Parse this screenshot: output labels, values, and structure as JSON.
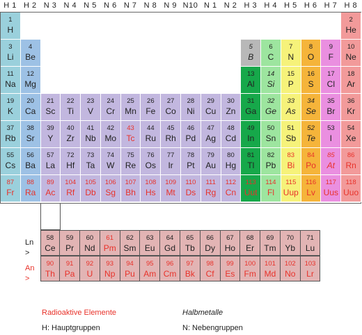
{
  "colors": {
    "alkali": "#9ad0dc",
    "alkaline_earth": "#9dc1e5",
    "transition": "#c2b7df",
    "boron": "#16a84a",
    "carbon": "#9de59f",
    "nitrogen": "#f6f27a",
    "oxygen": "#f5b43a",
    "halogen": "#ea8fe0",
    "noble": "#f29a9a",
    "boron_B": "#b8b8b8",
    "lanthanide": "#e2b4b4",
    "radioactive": "#e8322a"
  },
  "headers": [
    "H 1",
    "H 2",
    "N 3",
    "N 4",
    "N 5",
    "N 6",
    "N 7",
    "N 8",
    "N 9",
    "N10",
    "N 1",
    "N 2",
    "H 3",
    "H 4",
    "H 5",
    "H 6",
    "H 7",
    "H 8"
  ],
  "elements": [
    {
      "n": "1",
      "s": "H",
      "c": 1,
      "r": 1,
      "g": "alkali"
    },
    {
      "n": "2",
      "s": "He",
      "c": 18,
      "r": 1,
      "g": "noble"
    },
    {
      "n": "3",
      "s": "Li",
      "c": 1,
      "r": 2,
      "g": "alkali"
    },
    {
      "n": "4",
      "s": "Be",
      "c": 2,
      "r": 2,
      "g": "alkaline_earth"
    },
    {
      "n": "5",
      "s": "B",
      "c": 13,
      "r": 2,
      "g": "boron_B",
      "it": true
    },
    {
      "n": "6",
      "s": "C",
      "c": 14,
      "r": 2,
      "g": "carbon"
    },
    {
      "n": "7",
      "s": "N",
      "c": 15,
      "r": 2,
      "g": "nitrogen"
    },
    {
      "n": "8",
      "s": "O",
      "c": 16,
      "r": 2,
      "g": "oxygen"
    },
    {
      "n": "9",
      "s": "F",
      "c": 17,
      "r": 2,
      "g": "halogen"
    },
    {
      "n": "10",
      "s": "Ne",
      "c": 18,
      "r": 2,
      "g": "noble"
    },
    {
      "n": "11",
      "s": "Na",
      "c": 1,
      "r": 3,
      "g": "alkali"
    },
    {
      "n": "12",
      "s": "Mg",
      "c": 2,
      "r": 3,
      "g": "alkaline_earth"
    },
    {
      "n": "13",
      "s": "Al",
      "c": 13,
      "r": 3,
      "g": "boron"
    },
    {
      "n": "14",
      "s": "Si",
      "c": 14,
      "r": 3,
      "g": "carbon",
      "it": true
    },
    {
      "n": "15",
      "s": "P",
      "c": 15,
      "r": 3,
      "g": "nitrogen"
    },
    {
      "n": "16",
      "s": "S",
      "c": 16,
      "r": 3,
      "g": "oxygen"
    },
    {
      "n": "17",
      "s": "Cl",
      "c": 17,
      "r": 3,
      "g": "halogen"
    },
    {
      "n": "18",
      "s": "Ar",
      "c": 18,
      "r": 3,
      "g": "noble"
    },
    {
      "n": "19",
      "s": "K",
      "c": 1,
      "r": 4,
      "g": "alkali"
    },
    {
      "n": "20",
      "s": "Ca",
      "c": 2,
      "r": 4,
      "g": "alkaline_earth"
    },
    {
      "n": "21",
      "s": "Sc",
      "c": 3,
      "r": 4,
      "g": "transition"
    },
    {
      "n": "22",
      "s": "Ti",
      "c": 4,
      "r": 4,
      "g": "transition"
    },
    {
      "n": "23",
      "s": "V",
      "c": 5,
      "r": 4,
      "g": "transition"
    },
    {
      "n": "24",
      "s": "Cr",
      "c": 6,
      "r": 4,
      "g": "transition"
    },
    {
      "n": "25",
      "s": "Mn",
      "c": 7,
      "r": 4,
      "g": "transition"
    },
    {
      "n": "26",
      "s": "Fe",
      "c": 8,
      "r": 4,
      "g": "transition"
    },
    {
      "n": "27",
      "s": "Co",
      "c": 9,
      "r": 4,
      "g": "transition"
    },
    {
      "n": "28",
      "s": "Ni",
      "c": 10,
      "r": 4,
      "g": "transition"
    },
    {
      "n": "29",
      "s": "Cu",
      "c": 11,
      "r": 4,
      "g": "transition"
    },
    {
      "n": "30",
      "s": "Zn",
      "c": 12,
      "r": 4,
      "g": "transition"
    },
    {
      "n": "31",
      "s": "Ga",
      "c": 13,
      "r": 4,
      "g": "boron"
    },
    {
      "n": "32",
      "s": "Ge",
      "c": 14,
      "r": 4,
      "g": "carbon",
      "it": true
    },
    {
      "n": "33",
      "s": "As",
      "c": 15,
      "r": 4,
      "g": "nitrogen",
      "it": true
    },
    {
      "n": "34",
      "s": "Se",
      "c": 16,
      "r": 4,
      "g": "oxygen",
      "it": true
    },
    {
      "n": "35",
      "s": "Br",
      "c": 17,
      "r": 4,
      "g": "halogen"
    },
    {
      "n": "36",
      "s": "Kr",
      "c": 18,
      "r": 4,
      "g": "noble"
    },
    {
      "n": "37",
      "s": "Rb",
      "c": 1,
      "r": 5,
      "g": "alkali"
    },
    {
      "n": "38",
      "s": "Sr",
      "c": 2,
      "r": 5,
      "g": "alkaline_earth"
    },
    {
      "n": "39",
      "s": "Y",
      "c": 3,
      "r": 5,
      "g": "transition"
    },
    {
      "n": "40",
      "s": "Zr",
      "c": 4,
      "r": 5,
      "g": "transition"
    },
    {
      "n": "41",
      "s": "Nb",
      "c": 5,
      "r": 5,
      "g": "transition"
    },
    {
      "n": "42",
      "s": "Mo",
      "c": 6,
      "r": 5,
      "g": "transition"
    },
    {
      "n": "43",
      "s": "Tc",
      "c": 7,
      "r": 5,
      "g": "transition",
      "red": true
    },
    {
      "n": "44",
      "s": "Ru",
      "c": 8,
      "r": 5,
      "g": "transition"
    },
    {
      "n": "45",
      "s": "Rh",
      "c": 9,
      "r": 5,
      "g": "transition"
    },
    {
      "n": "46",
      "s": "Pd",
      "c": 10,
      "r": 5,
      "g": "transition"
    },
    {
      "n": "47",
      "s": "Ag",
      "c": 11,
      "r": 5,
      "g": "transition"
    },
    {
      "n": "48",
      "s": "Cd",
      "c": 12,
      "r": 5,
      "g": "transition"
    },
    {
      "n": "49",
      "s": "In",
      "c": 13,
      "r": 5,
      "g": "boron"
    },
    {
      "n": "50",
      "s": "Sn",
      "c": 14,
      "r": 5,
      "g": "carbon"
    },
    {
      "n": "51",
      "s": "Sb",
      "c": 15,
      "r": 5,
      "g": "nitrogen"
    },
    {
      "n": "52",
      "s": "Te",
      "c": 16,
      "r": 5,
      "g": "oxygen",
      "it": true
    },
    {
      "n": "53",
      "s": "I",
      "c": 17,
      "r": 5,
      "g": "halogen"
    },
    {
      "n": "54",
      "s": "Xe",
      "c": 18,
      "r": 5,
      "g": "noble"
    },
    {
      "n": "55",
      "s": "Cs",
      "c": 1,
      "r": 6,
      "g": "alkali"
    },
    {
      "n": "56",
      "s": "Ba",
      "c": 2,
      "r": 6,
      "g": "alkaline_earth"
    },
    {
      "n": "57",
      "s": "La",
      "c": 3,
      "r": 6,
      "g": "transition"
    },
    {
      "n": "72",
      "s": "Hf",
      "c": 4,
      "r": 6,
      "g": "transition"
    },
    {
      "n": "73",
      "s": "Ta",
      "c": 5,
      "r": 6,
      "g": "transition"
    },
    {
      "n": "74",
      "s": "W",
      "c": 6,
      "r": 6,
      "g": "transition"
    },
    {
      "n": "75",
      "s": "Re",
      "c": 7,
      "r": 6,
      "g": "transition"
    },
    {
      "n": "76",
      "s": "Os",
      "c": 8,
      "r": 6,
      "g": "transition"
    },
    {
      "n": "77",
      "s": "Ir",
      "c": 9,
      "r": 6,
      "g": "transition"
    },
    {
      "n": "78",
      "s": "Pt",
      "c": 10,
      "r": 6,
      "g": "transition"
    },
    {
      "n": "79",
      "s": "Au",
      "c": 11,
      "r": 6,
      "g": "transition"
    },
    {
      "n": "80",
      "s": "Hg",
      "c": 12,
      "r": 6,
      "g": "transition"
    },
    {
      "n": "81",
      "s": "Tl",
      "c": 13,
      "r": 6,
      "g": "boron"
    },
    {
      "n": "82",
      "s": "Pb",
      "c": 14,
      "r": 6,
      "g": "carbon"
    },
    {
      "n": "83",
      "s": "Bi",
      "c": 15,
      "r": 6,
      "g": "nitrogen",
      "red": true
    },
    {
      "n": "84",
      "s": "Po",
      "c": 16,
      "r": 6,
      "g": "oxygen",
      "red": true
    },
    {
      "n": "85",
      "s": "At",
      "c": 17,
      "r": 6,
      "g": "halogen",
      "red": true,
      "it": true
    },
    {
      "n": "86",
      "s": "Rn",
      "c": 18,
      "r": 6,
      "g": "noble",
      "red": true
    },
    {
      "n": "87",
      "s": "Fr",
      "c": 1,
      "r": 7,
      "g": "alkali",
      "red": true
    },
    {
      "n": "88",
      "s": "Ra",
      "c": 2,
      "r": 7,
      "g": "alkaline_earth",
      "red": true
    },
    {
      "n": "89",
      "s": "Ac",
      "c": 3,
      "r": 7,
      "g": "transition",
      "red": true
    },
    {
      "n": "104",
      "s": "Rf",
      "c": 4,
      "r": 7,
      "g": "transition",
      "red": true
    },
    {
      "n": "105",
      "s": "Db",
      "c": 5,
      "r": 7,
      "g": "transition",
      "red": true
    },
    {
      "n": "106",
      "s": "Sg",
      "c": 6,
      "r": 7,
      "g": "transition",
      "red": true
    },
    {
      "n": "107",
      "s": "Bh",
      "c": 7,
      "r": 7,
      "g": "transition",
      "red": true
    },
    {
      "n": "108",
      "s": "Hs",
      "c": 8,
      "r": 7,
      "g": "transition",
      "red": true
    },
    {
      "n": "109",
      "s": "Mt",
      "c": 9,
      "r": 7,
      "g": "transition",
      "red": true
    },
    {
      "n": "110",
      "s": "Ds",
      "c": 10,
      "r": 7,
      "g": "transition",
      "red": true
    },
    {
      "n": "111",
      "s": "Rg",
      "c": 11,
      "r": 7,
      "g": "transition",
      "red": true
    },
    {
      "n": "112",
      "s": "Cn",
      "c": 12,
      "r": 7,
      "g": "transition",
      "red": true
    },
    {
      "n": "113",
      "s": "Uut",
      "c": 13,
      "r": 7,
      "g": "boron",
      "red": true
    },
    {
      "n": "114",
      "s": "Fl",
      "c": 14,
      "r": 7,
      "g": "carbon",
      "red": true
    },
    {
      "n": "115",
      "s": "Uup",
      "c": 15,
      "r": 7,
      "g": "nitrogen",
      "red": true
    },
    {
      "n": "116",
      "s": "Lv",
      "c": 16,
      "r": 7,
      "g": "oxygen",
      "red": true
    },
    {
      "n": "117",
      "s": "Uus",
      "c": 17,
      "r": 7,
      "g": "halogen",
      "red": true
    },
    {
      "n": "118",
      "s": "Uuo",
      "c": 18,
      "r": 7,
      "g": "noble",
      "red": true
    }
  ],
  "lanthanides": [
    {
      "n": "58",
      "s": "Ce"
    },
    {
      "n": "59",
      "s": "Pr"
    },
    {
      "n": "60",
      "s": "Nd"
    },
    {
      "n": "61",
      "s": "Pm",
      "red": true
    },
    {
      "n": "62",
      "s": "Sm"
    },
    {
      "n": "63",
      "s": "Eu"
    },
    {
      "n": "64",
      "s": "Gd"
    },
    {
      "n": "65",
      "s": "Tb"
    },
    {
      "n": "66",
      "s": "Dy"
    },
    {
      "n": "67",
      "s": "Ho"
    },
    {
      "n": "68",
      "s": "Er"
    },
    {
      "n": "69",
      "s": "Tm"
    },
    {
      "n": "70",
      "s": "Yb"
    },
    {
      "n": "71",
      "s": "Lu"
    }
  ],
  "actinides": [
    {
      "n": "90",
      "s": "Th"
    },
    {
      "n": "91",
      "s": "Pa"
    },
    {
      "n": "92",
      "s": "U"
    },
    {
      "n": "93",
      "s": "Np"
    },
    {
      "n": "94",
      "s": "Pu"
    },
    {
      "n": "95",
      "s": "Am"
    },
    {
      "n": "96",
      "s": "Cm"
    },
    {
      "n": "97",
      "s": "Bk"
    },
    {
      "n": "98",
      "s": "Cf"
    },
    {
      "n": "99",
      "s": "Es"
    },
    {
      "n": "100",
      "s": "Fm"
    },
    {
      "n": "101",
      "s": "Md"
    },
    {
      "n": "102",
      "s": "No"
    },
    {
      "n": "103",
      "s": "Lr"
    }
  ],
  "series_labels": {
    "ln": "Ln",
    "ln_arrow": ">",
    "an": "An",
    "an_arrow": ">"
  },
  "legend": {
    "radioactive": "Radioaktive Elemente",
    "semimetals": "Halbmetalle",
    "main_groups": "H: Hauptgruppen",
    "sub_groups": "N: Nebengruppen"
  }
}
